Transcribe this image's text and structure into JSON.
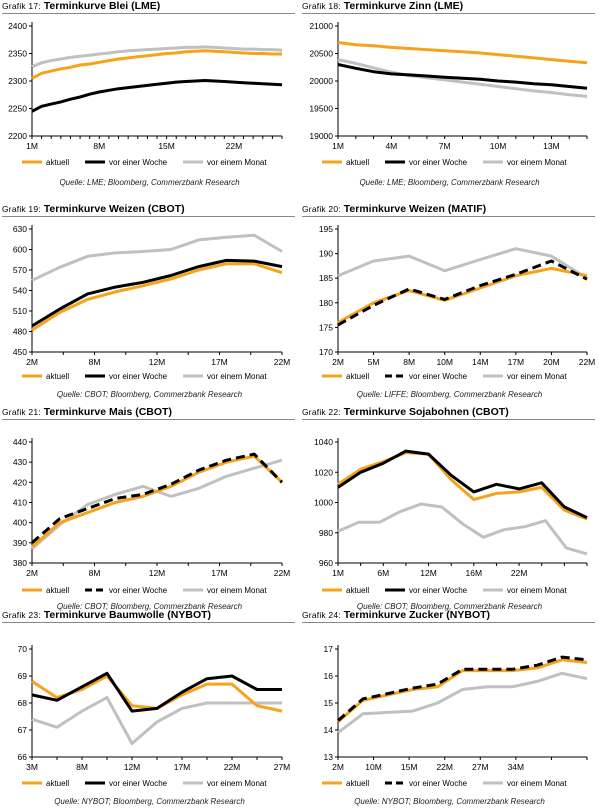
{
  "colors": {
    "aktuell": "#F7A21B",
    "woche": "#000000",
    "monat": "#C0C0C0"
  },
  "charts": [
    {
      "prefix": "Grafik 17:",
      "title": "Terminkurve Blei (LME)",
      "source": "Quelle: LME; Bloomberg, Commerzbank Research",
      "legend": [
        "aktuell",
        "vor einer Woche",
        "vor einem Monat"
      ],
      "chart_data": {
        "type": "line",
        "ylim": [
          2200,
          2400
        ],
        "yticks": [
          2200,
          2250,
          2300,
          2350,
          2400
        ],
        "xcount": 27,
        "xticks": [
          [
            0,
            "1M"
          ],
          [
            7,
            "8M"
          ],
          [
            14,
            "15M"
          ],
          [
            21,
            "22M"
          ]
        ],
        "woche_dashed": false,
        "series": [
          {
            "name": "aktuell",
            "values": [
              2305,
              2314,
              2318,
              2322,
              2325,
              2329,
              2331,
              2334,
              2337,
              2340,
              2342,
              2344,
              2346,
              2348,
              2350,
              2351,
              2353,
              2354,
              2355,
              2354,
              2353,
              2352,
              2351,
              2350,
              2350,
              2349,
              2349
            ]
          },
          {
            "name": "vor einer Woche",
            "values": [
              2245,
              2254,
              2258,
              2262,
              2267,
              2271,
              2276,
              2280,
              2283,
              2286,
              2288,
              2290,
              2292,
              2294,
              2296,
              2298,
              2299,
              2300,
              2301,
              2300,
              2299,
              2298,
              2297,
              2296,
              2295,
              2294,
              2293
            ]
          },
          {
            "name": "vor einem Monat",
            "values": [
              2326,
              2333,
              2337,
              2340,
              2343,
              2345,
              2347,
              2349,
              2351,
              2353,
              2355,
              2356,
              2357,
              2358,
              2359,
              2360,
              2361,
              2361,
              2362,
              2361,
              2360,
              2359,
              2358,
              2358,
              2357,
              2357,
              2356
            ]
          }
        ]
      }
    },
    {
      "prefix": "Grafik 18:",
      "title": "Terminkurve Zinn (LME)",
      "source": "Quelle: LME; Bloomberg, Commerzbank Research",
      "legend": [
        "aktuell",
        "vor einer Woche",
        "vor einem Monat"
      ],
      "chart_data": {
        "type": "line",
        "ylim": [
          19000,
          21000
        ],
        "yticks": [
          19000,
          19500,
          20000,
          20500,
          21000
        ],
        "xcount": 15,
        "xticks": [
          [
            0,
            "1M"
          ],
          [
            3,
            "4M"
          ],
          [
            6,
            "7M"
          ],
          [
            9,
            "10M"
          ],
          [
            12,
            "13M"
          ]
        ],
        "woche_dashed": false,
        "series": [
          {
            "name": "aktuell",
            "values": [
              20700,
              20660,
              20640,
              20610,
              20590,
              20570,
              20550,
              20530,
              20510,
              20480,
              20450,
              20420,
              20390,
              20360,
              20330
            ]
          },
          {
            "name": "vor einer Woche",
            "values": [
              20300,
              20230,
              20170,
              20130,
              20110,
              20090,
              20070,
              20050,
              20030,
              20000,
              19980,
              19950,
              19930,
              19900,
              19870
            ]
          },
          {
            "name": "vor einem Monat",
            "values": [
              20390,
              20320,
              20240,
              20160,
              20100,
              20060,
              20020,
              19980,
              19940,
              19900,
              19860,
              19820,
              19790,
              19750,
              19720
            ]
          }
        ]
      }
    },
    {
      "prefix": "Grafik 19:",
      "title": "Terminkurve Weizen (CBOT)",
      "source": "Quelle: CBOT; Bloomberg, Commerzbank Research",
      "legend": [
        "aktuell",
        "vor einer Woche",
        "vor einem Monat"
      ],
      "chart_data": {
        "type": "line",
        "ylim": [
          450,
          630
        ],
        "yticks": [
          450,
          480,
          510,
          540,
          570,
          600,
          630
        ],
        "xcount": 9,
        "xticks": [
          [
            0,
            "2M"
          ],
          [
            2,
            "8M"
          ],
          [
            4,
            "12M"
          ],
          [
            6,
            "17M"
          ],
          [
            8,
            "22M"
          ]
        ],
        "woche_dashed": false,
        "series": [
          {
            "name": "aktuell",
            "values": [
              482,
              508,
              527,
              538,
              547,
              557,
              570,
              579,
              579,
              566
            ]
          },
          {
            "name": "vor einer Woche",
            "values": [
              488,
              513,
              535,
              545,
              552,
              562,
              575,
              584,
              583,
              575
            ]
          },
          {
            "name": "vor einem Monat",
            "values": [
              555,
              574,
              590,
              595,
              597,
              600,
              614,
              618,
              621,
              597
            ]
          }
        ]
      }
    },
    {
      "prefix": "Grafik 20:",
      "title": "Terminkurve Weizen (MATIF)",
      "source": "Quelle: LIFFE; Bloomberg, Commerzbank Research",
      "legend": [
        "aktuell",
        "vor einer Woche",
        "vor einem Monat"
      ],
      "chart_data": {
        "type": "line",
        "ylim": [
          170,
          195
        ],
        "yticks": [
          170,
          175,
          180,
          185,
          190,
          195
        ],
        "xcount": 8,
        "xticks": [
          [
            0,
            "2M"
          ],
          [
            1,
            "5M"
          ],
          [
            2,
            "8M"
          ],
          [
            3,
            "10M"
          ],
          [
            4,
            "14M"
          ],
          [
            5,
            "17M"
          ],
          [
            6,
            "20M"
          ],
          [
            7,
            "22M"
          ]
        ],
        "woche_dashed": true,
        "series": [
          {
            "name": "aktuell",
            "values": [
              176,
              180,
              182.5,
              180.5,
              183,
              185.5,
              187,
              185.5
            ]
          },
          {
            "name": "vor einer Woche",
            "values": [
              175.5,
              179.5,
              182.8,
              180.7,
              183.5,
              185.8,
              188.5,
              184.8
            ]
          },
          {
            "name": "vor einem Monat",
            "values": [
              185.5,
              188.5,
              189.5,
              186.5,
              188.8,
              191,
              189.5,
              185
            ]
          }
        ]
      }
    },
    {
      "prefix": "Grafik 21:",
      "title": "Terminkurve Mais (CBOT)",
      "source": "Quelle: CBOT; Bloomberg, Commerzbank Research",
      "legend": [
        "aktuell",
        "vor einer Woche",
        "vor einem Monat"
      ],
      "chart_data": {
        "type": "line",
        "ylim": [
          380,
          440
        ],
        "yticks": [
          380,
          390,
          400,
          410,
          420,
          430,
          440
        ],
        "xcount": 9,
        "xticks": [
          [
            0,
            "2M"
          ],
          [
            2,
            "8M"
          ],
          [
            4,
            "12M"
          ],
          [
            6,
            "17M"
          ],
          [
            8,
            "22M"
          ]
        ],
        "woche_dashed": true,
        "series": [
          {
            "name": "aktuell",
            "values": [
              388,
              400,
              405,
              410,
              413,
              418,
              425,
              430,
              433,
              420
            ]
          },
          {
            "name": "vor einer Woche",
            "values": [
              390,
              402,
              407,
              412,
              414,
              419,
              426,
              431,
              434,
              420
            ]
          },
          {
            "name": "vor einem Monat",
            "values": [
              387,
              399,
              409,
              414,
              418,
              413,
              417,
              423,
              427,
              431
            ]
          }
        ]
      }
    },
    {
      "prefix": "Grafik 22:",
      "title": "Terminkurve Sojabohnen (CBOT)",
      "source": "Quelle: CBOT; Bloomberg, Commerzbank Research",
      "legend": [
        "aktuell",
        "vor einer Woche",
        "vor einem Monat"
      ],
      "chart_data": {
        "type": "line",
        "ylim": [
          960,
          1040
        ],
        "yticks": [
          960,
          980,
          1000,
          1020,
          1040
        ],
        "xcount": 12,
        "xticks": [
          [
            0,
            "1M"
          ],
          [
            2,
            "6M"
          ],
          [
            4,
            "12M"
          ],
          [
            6,
            "16M"
          ],
          [
            8,
            "22M"
          ]
        ],
        "woche_dashed": false,
        "series": [
          {
            "name": "aktuell",
            "values": [
              1012,
              1022,
              1027,
              1033,
              1032,
              1015,
              1002,
              1006,
              1007,
              1010,
              995,
              989
            ]
          },
          {
            "name": "vor einer Woche",
            "values": [
              1010,
              1020,
              1026,
              1034,
              1032,
              1018,
              1007,
              1012,
              1009,
              1013,
              997,
              990
            ]
          },
          {
            "name": "vor einem Monat",
            "values": [
              981,
              987,
              987,
              994,
              999,
              997,
              986,
              977,
              982,
              984,
              988,
              970,
              966
            ]
          }
        ]
      }
    },
    {
      "prefix": "Grafik 23:",
      "title": "Terminkurve Baumwolle (NYBOT)",
      "source": "Quelle: NYBOT; Bloomberg, Commerzbank Research",
      "legend": [
        "aktuell",
        "vor einer Woche",
        "vor einem Monat"
      ],
      "chart_data": {
        "type": "line",
        "ylim": [
          66,
          70
        ],
        "yticks": [
          66,
          67,
          68,
          69,
          70
        ],
        "xcount": 11,
        "xticks": [
          [
            0,
            "3M"
          ],
          [
            2,
            "8M"
          ],
          [
            4,
            "12M"
          ],
          [
            6,
            "17M"
          ],
          [
            8,
            "22M"
          ],
          [
            10,
            "27M"
          ]
        ],
        "woche_dashed": false,
        "series": [
          {
            "name": "aktuell",
            "values": [
              68.8,
              68.2,
              68.5,
              69.0,
              67.9,
              67.8,
              68.3,
              68.7,
              68.7,
              67.9,
              67.7
            ]
          },
          {
            "name": "vor einer Woche",
            "values": [
              68.3,
              68.1,
              68.6,
              69.1,
              67.7,
              67.8,
              68.4,
              68.9,
              69.0,
              68.5,
              68.5
            ]
          },
          {
            "name": "vor einem Monat",
            "values": [
              67.4,
              67.1,
              67.7,
              68.2,
              66.5,
              67.3,
              67.8,
              68.0,
              68.0,
              68.0,
              68.0
            ]
          }
        ]
      }
    },
    {
      "prefix": "Grafik 24:",
      "title": "Terminkurve Zucker (NYBOT)",
      "source": "Quelle: NYBOT; Bloomberg, Commerzbank Research",
      "legend": [
        "aktuell",
        "vor einer Woche",
        "vor einem Monat"
      ],
      "chart_data": {
        "type": "line",
        "ylim": [
          13,
          17
        ],
        "yticks": [
          13.0,
          14.0,
          15.0,
          16.0,
          17.0
        ],
        "xcount": 8,
        "xticks": [
          [
            0,
            "2M"
          ],
          [
            1,
            "10M"
          ],
          [
            2,
            "15M"
          ],
          [
            3,
            "22M"
          ],
          [
            4,
            "27M"
          ],
          [
            5,
            "34M"
          ]
        ],
        "woche_dashed": true,
        "series": [
          {
            "name": "aktuell",
            "values": [
              14.3,
              15.1,
              15.3,
              15.5,
              15.6,
              16.2,
              16.2,
              16.2,
              16.3,
              16.6,
              16.5
            ]
          },
          {
            "name": "vor einer Woche",
            "values": [
              14.35,
              15.15,
              15.35,
              15.55,
              15.7,
              16.25,
              16.25,
              16.25,
              16.4,
              16.7,
              16.6
            ]
          },
          {
            "name": "vor einem Monat",
            "values": [
              13.9,
              14.6,
              14.65,
              14.7,
              15.0,
              15.5,
              15.6,
              15.6,
              15.8,
              16.1,
              15.9
            ]
          }
        ]
      }
    }
  ]
}
